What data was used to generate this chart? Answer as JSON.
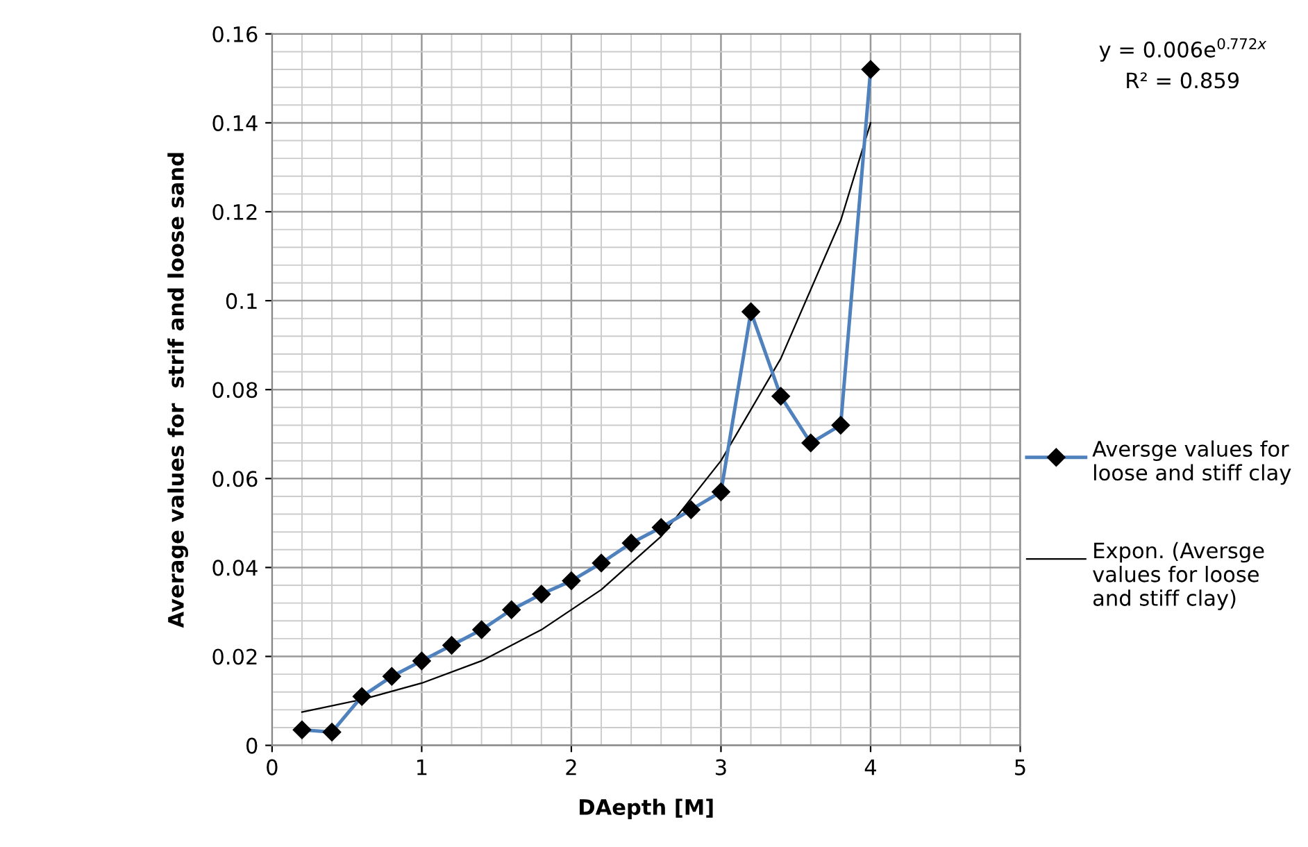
{
  "chart_data": {
    "type": "line",
    "xlabel": "DAepth [M]",
    "ylabel": "Average values for  strif and loose sand",
    "xlim": [
      0,
      5
    ],
    "xticks": [
      0,
      1,
      2,
      3,
      4,
      5
    ],
    "ylim": [
      0,
      0.16
    ],
    "yticks": [
      0,
      0.02,
      0.04,
      0.06,
      0.08,
      0.1,
      0.12,
      0.14,
      0.16
    ],
    "grid": true,
    "legend": "right",
    "annotations": [
      "y = 0.006e$^{0.772x}$",
      "R² = 0.859"
    ],
    "series": [
      {
        "name": "Aversge values for loose and stiff clay",
        "color": "#4f81bd",
        "marker": "diamond",
        "x": [
          0.2,
          0.4,
          0.6,
          0.8,
          1.0,
          1.2,
          1.4,
          1.6,
          1.8,
          2.0,
          2.2,
          2.4,
          2.6,
          2.8,
          3.0,
          3.2,
          3.4,
          3.6,
          3.8,
          4.0
        ],
        "values": [
          0.0035,
          0.003,
          0.011,
          0.0155,
          0.019,
          0.0225,
          0.026,
          0.0305,
          0.034,
          0.037,
          0.041,
          0.0455,
          0.049,
          0.053,
          0.057,
          0.0975,
          0.0785,
          0.068,
          0.072,
          0.152
        ]
      },
      {
        "name": "Expon. (Aversge values for loose and stiff clay)",
        "color": "#000000",
        "marker": "none",
        "x": [
          0.2,
          0.6,
          1.0,
          1.4,
          1.8,
          2.2,
          2.6,
          3.0,
          3.4,
          3.8,
          4.0
        ],
        "values": [
          0.0075,
          0.0103,
          0.014,
          0.019,
          0.026,
          0.035,
          0.047,
          0.064,
          0.087,
          0.118,
          0.14
        ]
      }
    ]
  }
}
